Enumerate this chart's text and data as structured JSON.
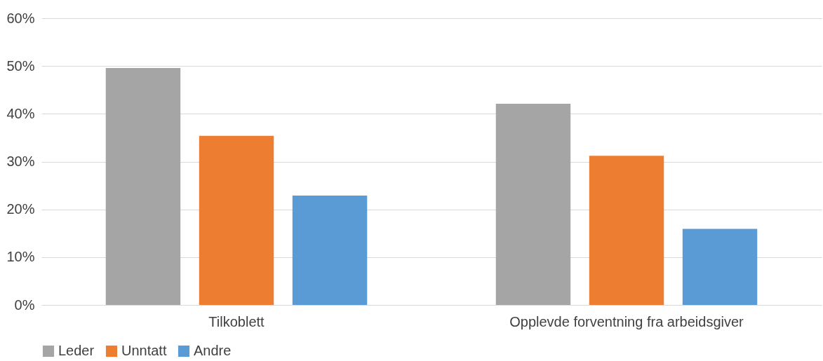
{
  "chart_data": {
    "type": "bar",
    "categories": [
      "Tilkoblett",
      "Opplevde forventning fra arbeidsgiver"
    ],
    "series": [
      {
        "name": "Leder",
        "color": "#a5a5a5",
        "values": [
          49.6,
          42.1
        ]
      },
      {
        "name": "Unntatt",
        "color": "#ed7d31",
        "values": [
          35.4,
          31.2
        ]
      },
      {
        "name": "Andre",
        "color": "#5b9bd5",
        "values": [
          22.9,
          15.9
        ]
      }
    ],
    "ylim": [
      0,
      60
    ],
    "yticks": [
      {
        "value": 0,
        "label": "0%"
      },
      {
        "value": 10,
        "label": "10%"
      },
      {
        "value": 20,
        "label": "20%"
      },
      {
        "value": 30,
        "label": "30%"
      },
      {
        "value": 40,
        "label": "40%"
      },
      {
        "value": 50,
        "label": "50%"
      },
      {
        "value": 60,
        "label": "60%"
      }
    ],
    "grid": "y",
    "legend": "bottom"
  }
}
